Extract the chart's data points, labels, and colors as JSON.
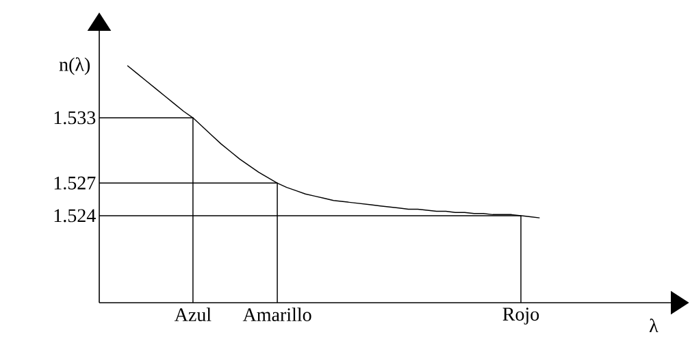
{
  "chart_data": {
    "type": "line",
    "xlabel": "λ",
    "ylabel": "n(λ)",
    "ylim": [
      1.516,
      1.541
    ],
    "categories": [
      null,
      null,
      null,
      null,
      null,
      null,
      null,
      null,
      null,
      null,
      "Azul",
      null,
      null,
      null,
      null,
      null,
      null,
      null,
      null,
      "Amarillo",
      null,
      null,
      null,
      null,
      null,
      null,
      null,
      null,
      null,
      null,
      null,
      null,
      null,
      null,
      null,
      null,
      null,
      null,
      null,
      null,
      null,
      null,
      null,
      null,
      null,
      "Rojo",
      null,
      null,
      null,
      null,
      null,
      null,
      null,
      null,
      null,
      null,
      null,
      null,
      null,
      null,
      null,
      null
    ],
    "yticks": [
      1.524,
      1.527,
      1.533
    ],
    "ref_lines": [
      {
        "axis": "y",
        "value": 1.533,
        "color": "#000000"
      },
      {
        "axis": "y",
        "value": 1.527,
        "color": "#000000"
      },
      {
        "axis": "y",
        "value": 1.524,
        "color": "#000000"
      }
    ],
    "series": [
      {
        "color": "#000000",
        "values": [
          null,
          null,
          null,
          1.5378,
          1.5371,
          1.5364,
          1.5357,
          1.535,
          1.5343,
          1.5336,
          1.533,
          1.5322,
          1.5314,
          1.5306,
          1.5299,
          1.5292,
          1.5286,
          1.528,
          1.5275,
          1.527,
          1.5266,
          1.5263,
          1.526,
          1.5258,
          1.5256,
          1.5254,
          1.5253,
          1.5252,
          1.5251,
          1.525,
          1.5249,
          1.5248,
          1.5247,
          1.5246,
          1.5246,
          1.5245,
          1.5244,
          1.5244,
          1.5243,
          1.5243,
          1.5242,
          1.5242,
          1.5241,
          1.5241,
          1.5241,
          1.524,
          1.5239,
          1.5238,
          null,
          null,
          null,
          null,
          null,
          null,
          null,
          null,
          null,
          null,
          null,
          null,
          null,
          null
        ]
      }
    ]
  }
}
